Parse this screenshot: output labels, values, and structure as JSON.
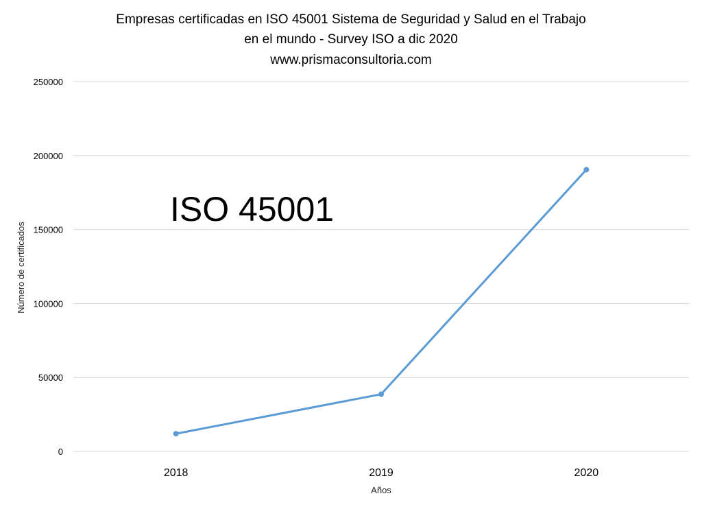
{
  "chart_data": {
    "type": "line",
    "title": [
      "Empresas certificadas en ISO 45001 Sistema de Seguridad y Salud en el Trabajo",
      "en el mundo - Survey ISO a dic 2020",
      "www.prismaconsultoria.com"
    ],
    "xlabel": "Años",
    "ylabel": "Número de certificados",
    "categories": [
      "2018",
      "2019",
      "2020"
    ],
    "series": [
      {
        "values": [
          11952,
          38654,
          190481
        ],
        "color": "#5b9bd5"
      }
    ],
    "ylim": [
      0,
      250000
    ],
    "yticks": [
      "0",
      "50000",
      "100000",
      "150000",
      "200000",
      "250000"
    ],
    "grid": true,
    "legend": "none",
    "annotation": "ISO 45001"
  }
}
